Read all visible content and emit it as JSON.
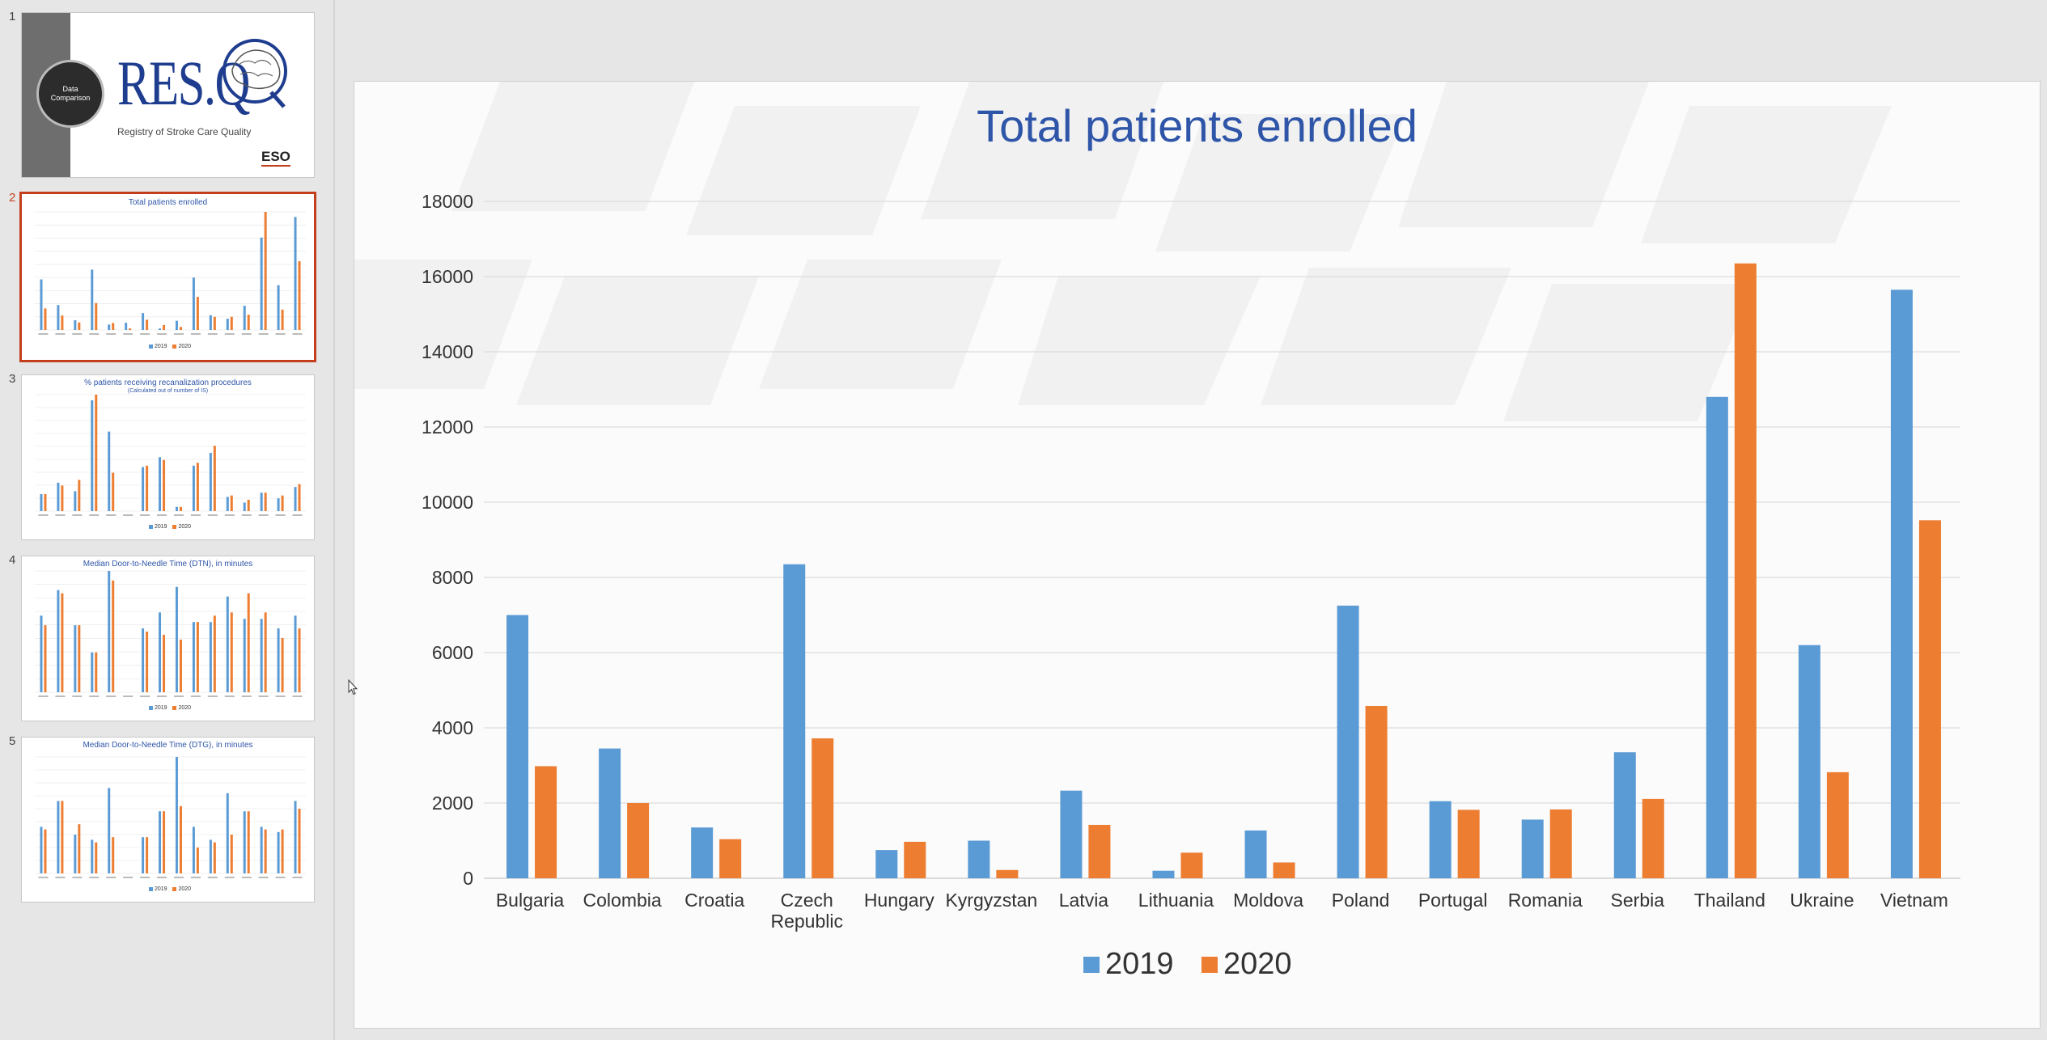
{
  "slides": [
    {
      "number": "1",
      "title": "RES.Q",
      "subtitle": "Registry of Stroke Care Quality",
      "badge": "Data Comparison",
      "logo": "ESO"
    },
    {
      "number": "2",
      "title": "Total patients enrolled"
    },
    {
      "number": "3",
      "title": "% patients receiving recanalization procedures",
      "subtitle": "(Calculated out of number of IS)"
    },
    {
      "number": "4",
      "title": "Median Door-to-Needle Time (DTN), in minutes"
    },
    {
      "number": "5",
      "title": "Median Door-to-Needle Time (DTG), in minutes"
    }
  ],
  "thumb_legend": [
    "2019",
    "2020"
  ],
  "colors": {
    "series2019": "#5b9bd5",
    "series2020": "#ed7d31",
    "title": "#2e55a8",
    "active": "#c43e1c"
  },
  "chart_data": {
    "type": "bar",
    "title": "Total patients enrolled",
    "categories": [
      "Bulgaria",
      "Colombia",
      "Croatia",
      "Czech Republic",
      "Hungary",
      "Kyrgyzstan",
      "Latvia",
      "Lithuania",
      "Moldova",
      "Poland",
      "Portugal",
      "Romania",
      "Serbia",
      "Thailand",
      "Ukraine",
      "Vietnam"
    ],
    "series": [
      {
        "name": "2019",
        "values": [
          7000,
          3450,
          1350,
          8350,
          750,
          1000,
          2330,
          200,
          1270,
          7250,
          2050,
          1560,
          3350,
          12800,
          6200,
          15650
        ]
      },
      {
        "name": "2020",
        "values": [
          2980,
          2000,
          1040,
          3720,
          970,
          220,
          1420,
          680,
          420,
          4580,
          1820,
          1830,
          2110,
          16350,
          2820,
          9520
        ]
      }
    ],
    "yticks": [
      0,
      2000,
      4000,
      6000,
      8000,
      10000,
      12000,
      14000,
      16000,
      18000
    ],
    "ylim": [
      0,
      18000
    ],
    "grid": true,
    "legend": "bottom-center",
    "xlabel": "",
    "ylabel": ""
  }
}
